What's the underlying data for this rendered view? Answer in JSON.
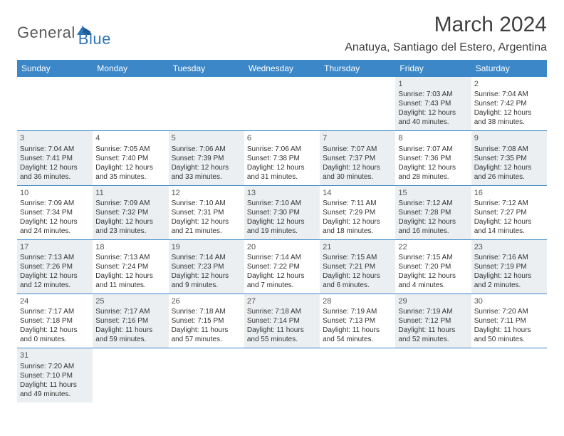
{
  "logo": {
    "text_dark": "General",
    "text_blue": "Blue"
  },
  "title": "March 2024",
  "location": "Anatuya, Santiago del Estero, Argentina",
  "colors": {
    "header_bg": "#3b87c8",
    "header_text": "#ffffff",
    "shaded_bg": "#eceff1",
    "divider": "#3b87c8",
    "body_text": "#333333",
    "logo_dark": "#5a5a5a",
    "logo_blue": "#2d76ba"
  },
  "weekdays": [
    "Sunday",
    "Monday",
    "Tuesday",
    "Wednesday",
    "Thursday",
    "Friday",
    "Saturday"
  ],
  "weeks": [
    [
      {
        "day": "",
        "shaded": false
      },
      {
        "day": "",
        "shaded": false
      },
      {
        "day": "",
        "shaded": false
      },
      {
        "day": "",
        "shaded": false
      },
      {
        "day": "",
        "shaded": false
      },
      {
        "day": "1",
        "shaded": true,
        "sunrise": "Sunrise: 7:03 AM",
        "sunset": "Sunset: 7:43 PM",
        "daylight1": "Daylight: 12 hours",
        "daylight2": "and 40 minutes."
      },
      {
        "day": "2",
        "shaded": false,
        "sunrise": "Sunrise: 7:04 AM",
        "sunset": "Sunset: 7:42 PM",
        "daylight1": "Daylight: 12 hours",
        "daylight2": "and 38 minutes."
      }
    ],
    [
      {
        "day": "3",
        "shaded": true,
        "sunrise": "Sunrise: 7:04 AM",
        "sunset": "Sunset: 7:41 PM",
        "daylight1": "Daylight: 12 hours",
        "daylight2": "and 36 minutes."
      },
      {
        "day": "4",
        "shaded": false,
        "sunrise": "Sunrise: 7:05 AM",
        "sunset": "Sunset: 7:40 PM",
        "daylight1": "Daylight: 12 hours",
        "daylight2": "and 35 minutes."
      },
      {
        "day": "5",
        "shaded": true,
        "sunrise": "Sunrise: 7:06 AM",
        "sunset": "Sunset: 7:39 PM",
        "daylight1": "Daylight: 12 hours",
        "daylight2": "and 33 minutes."
      },
      {
        "day": "6",
        "shaded": false,
        "sunrise": "Sunrise: 7:06 AM",
        "sunset": "Sunset: 7:38 PM",
        "daylight1": "Daylight: 12 hours",
        "daylight2": "and 31 minutes."
      },
      {
        "day": "7",
        "shaded": true,
        "sunrise": "Sunrise: 7:07 AM",
        "sunset": "Sunset: 7:37 PM",
        "daylight1": "Daylight: 12 hours",
        "daylight2": "and 30 minutes."
      },
      {
        "day": "8",
        "shaded": false,
        "sunrise": "Sunrise: 7:07 AM",
        "sunset": "Sunset: 7:36 PM",
        "daylight1": "Daylight: 12 hours",
        "daylight2": "and 28 minutes."
      },
      {
        "day": "9",
        "shaded": true,
        "sunrise": "Sunrise: 7:08 AM",
        "sunset": "Sunset: 7:35 PM",
        "daylight1": "Daylight: 12 hours",
        "daylight2": "and 26 minutes."
      }
    ],
    [
      {
        "day": "10",
        "shaded": false,
        "sunrise": "Sunrise: 7:09 AM",
        "sunset": "Sunset: 7:34 PM",
        "daylight1": "Daylight: 12 hours",
        "daylight2": "and 24 minutes."
      },
      {
        "day": "11",
        "shaded": true,
        "sunrise": "Sunrise: 7:09 AM",
        "sunset": "Sunset: 7:32 PM",
        "daylight1": "Daylight: 12 hours",
        "daylight2": "and 23 minutes."
      },
      {
        "day": "12",
        "shaded": false,
        "sunrise": "Sunrise: 7:10 AM",
        "sunset": "Sunset: 7:31 PM",
        "daylight1": "Daylight: 12 hours",
        "daylight2": "and 21 minutes."
      },
      {
        "day": "13",
        "shaded": true,
        "sunrise": "Sunrise: 7:10 AM",
        "sunset": "Sunset: 7:30 PM",
        "daylight1": "Daylight: 12 hours",
        "daylight2": "and 19 minutes."
      },
      {
        "day": "14",
        "shaded": false,
        "sunrise": "Sunrise: 7:11 AM",
        "sunset": "Sunset: 7:29 PM",
        "daylight1": "Daylight: 12 hours",
        "daylight2": "and 18 minutes."
      },
      {
        "day": "15",
        "shaded": true,
        "sunrise": "Sunrise: 7:12 AM",
        "sunset": "Sunset: 7:28 PM",
        "daylight1": "Daylight: 12 hours",
        "daylight2": "and 16 minutes."
      },
      {
        "day": "16",
        "shaded": false,
        "sunrise": "Sunrise: 7:12 AM",
        "sunset": "Sunset: 7:27 PM",
        "daylight1": "Daylight: 12 hours",
        "daylight2": "and 14 minutes."
      }
    ],
    [
      {
        "day": "17",
        "shaded": true,
        "sunrise": "Sunrise: 7:13 AM",
        "sunset": "Sunset: 7:26 PM",
        "daylight1": "Daylight: 12 hours",
        "daylight2": "and 12 minutes."
      },
      {
        "day": "18",
        "shaded": false,
        "sunrise": "Sunrise: 7:13 AM",
        "sunset": "Sunset: 7:24 PM",
        "daylight1": "Daylight: 12 hours",
        "daylight2": "and 11 minutes."
      },
      {
        "day": "19",
        "shaded": true,
        "sunrise": "Sunrise: 7:14 AM",
        "sunset": "Sunset: 7:23 PM",
        "daylight1": "Daylight: 12 hours",
        "daylight2": "and 9 minutes."
      },
      {
        "day": "20",
        "shaded": false,
        "sunrise": "Sunrise: 7:14 AM",
        "sunset": "Sunset: 7:22 PM",
        "daylight1": "Daylight: 12 hours",
        "daylight2": "and 7 minutes."
      },
      {
        "day": "21",
        "shaded": true,
        "sunrise": "Sunrise: 7:15 AM",
        "sunset": "Sunset: 7:21 PM",
        "daylight1": "Daylight: 12 hours",
        "daylight2": "and 6 minutes."
      },
      {
        "day": "22",
        "shaded": false,
        "sunrise": "Sunrise: 7:15 AM",
        "sunset": "Sunset: 7:20 PM",
        "daylight1": "Daylight: 12 hours",
        "daylight2": "and 4 minutes."
      },
      {
        "day": "23",
        "shaded": true,
        "sunrise": "Sunrise: 7:16 AM",
        "sunset": "Sunset: 7:19 PM",
        "daylight1": "Daylight: 12 hours",
        "daylight2": "and 2 minutes."
      }
    ],
    [
      {
        "day": "24",
        "shaded": false,
        "sunrise": "Sunrise: 7:17 AM",
        "sunset": "Sunset: 7:18 PM",
        "daylight1": "Daylight: 12 hours",
        "daylight2": "and 0 minutes."
      },
      {
        "day": "25",
        "shaded": true,
        "sunrise": "Sunrise: 7:17 AM",
        "sunset": "Sunset: 7:16 PM",
        "daylight1": "Daylight: 11 hours",
        "daylight2": "and 59 minutes."
      },
      {
        "day": "26",
        "shaded": false,
        "sunrise": "Sunrise: 7:18 AM",
        "sunset": "Sunset: 7:15 PM",
        "daylight1": "Daylight: 11 hours",
        "daylight2": "and 57 minutes."
      },
      {
        "day": "27",
        "shaded": true,
        "sunrise": "Sunrise: 7:18 AM",
        "sunset": "Sunset: 7:14 PM",
        "daylight1": "Daylight: 11 hours",
        "daylight2": "and 55 minutes."
      },
      {
        "day": "28",
        "shaded": false,
        "sunrise": "Sunrise: 7:19 AM",
        "sunset": "Sunset: 7:13 PM",
        "daylight1": "Daylight: 11 hours",
        "daylight2": "and 54 minutes."
      },
      {
        "day": "29",
        "shaded": true,
        "sunrise": "Sunrise: 7:19 AM",
        "sunset": "Sunset: 7:12 PM",
        "daylight1": "Daylight: 11 hours",
        "daylight2": "and 52 minutes."
      },
      {
        "day": "30",
        "shaded": false,
        "sunrise": "Sunrise: 7:20 AM",
        "sunset": "Sunset: 7:11 PM",
        "daylight1": "Daylight: 11 hours",
        "daylight2": "and 50 minutes."
      }
    ],
    [
      {
        "day": "31",
        "shaded": true,
        "sunrise": "Sunrise: 7:20 AM",
        "sunset": "Sunset: 7:10 PM",
        "daylight1": "Daylight: 11 hours",
        "daylight2": "and 49 minutes."
      },
      {
        "day": "",
        "shaded": false
      },
      {
        "day": "",
        "shaded": false
      },
      {
        "day": "",
        "shaded": false
      },
      {
        "day": "",
        "shaded": false
      },
      {
        "day": "",
        "shaded": false
      },
      {
        "day": "",
        "shaded": false
      }
    ]
  ]
}
